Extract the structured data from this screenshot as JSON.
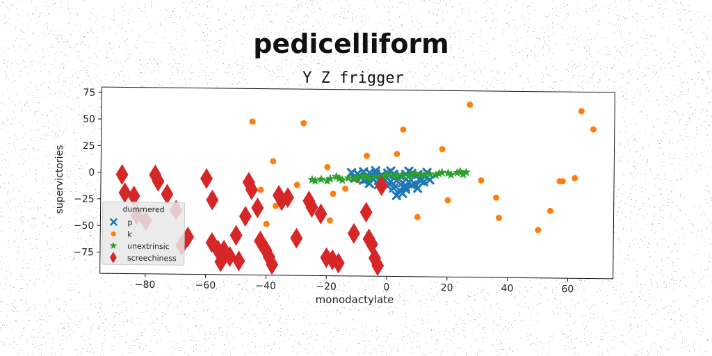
{
  "chart_data": {
    "type": "scatter",
    "title": "pedicelliform",
    "subtitle": "Y Z frigger",
    "xlabel": "monodactylate",
    "ylabel": "supervictories",
    "xlim": [
      -95,
      75
    ],
    "ylim": [
      -95,
      80
    ],
    "xticks": [
      -80,
      -60,
      -40,
      -20,
      0,
      20,
      40,
      60
    ],
    "yticks": [
      75,
      50,
      25,
      0,
      -25,
      -50,
      -75
    ],
    "xtick_labels": [
      "−80",
      "−60",
      "−40",
      "−20",
      "0",
      "20",
      "40",
      "60"
    ],
    "ytick_labels": [
      "75",
      "50",
      "25",
      "0",
      "−25",
      "−50",
      "−75"
    ],
    "grid": false,
    "legend": {
      "title": "dummered",
      "placement": "lower-left"
    },
    "series": [
      {
        "name": "p",
        "marker": "x",
        "color": "#1f77b4",
        "points": [
          [
            -12,
            2
          ],
          [
            -10,
            1
          ],
          [
            -8,
            3
          ],
          [
            -6,
            2
          ],
          [
            -4,
            1
          ],
          [
            -2,
            0
          ],
          [
            0,
            2
          ],
          [
            2,
            1
          ],
          [
            4,
            0
          ],
          [
            6,
            1
          ],
          [
            8,
            2
          ],
          [
            10,
            1
          ],
          [
            12,
            0
          ],
          [
            13,
            3
          ],
          [
            -11,
            -3
          ],
          [
            -9,
            -2
          ],
          [
            -7,
            -4
          ],
          [
            -5,
            -3
          ],
          [
            -3,
            -5
          ],
          [
            -1,
            -4
          ],
          [
            1,
            -6
          ],
          [
            3,
            -5
          ],
          [
            5,
            -7
          ],
          [
            7,
            -6
          ],
          [
            9,
            -8
          ],
          [
            11,
            -5
          ],
          [
            -6,
            -8
          ],
          [
            -3,
            -9
          ],
          [
            0,
            -10
          ],
          [
            2,
            -12
          ],
          [
            4,
            -14
          ],
          [
            6,
            -11
          ],
          [
            8,
            -9
          ],
          [
            10,
            -12
          ],
          [
            12,
            -6
          ],
          [
            -8,
            -5
          ],
          [
            -2,
            -7
          ],
          [
            5,
            -17
          ],
          [
            3,
            -19
          ],
          [
            6,
            -13
          ],
          [
            14,
            -4
          ],
          [
            -4,
            4
          ],
          [
            1,
            4
          ],
          [
            7,
            4
          ]
        ]
      },
      {
        "name": "k",
        "marker": "o",
        "color": "#ff7f0e",
        "points": [
          [
            -45,
            49
          ],
          [
            -28,
            48
          ],
          [
            -38,
            12
          ],
          [
            -20,
            7
          ],
          [
            -7,
            18
          ],
          [
            3,
            20
          ],
          [
            5,
            43
          ],
          [
            18,
            25
          ],
          [
            27,
            67
          ],
          [
            31,
            -4
          ],
          [
            36,
            -20
          ],
          [
            37,
            -39
          ],
          [
            50,
            -50
          ],
          [
            54,
            -32
          ],
          [
            57,
            -4
          ],
          [
            58,
            -4
          ],
          [
            62,
            -1
          ],
          [
            64,
            62
          ],
          [
            68,
            45
          ],
          [
            -42,
            -15
          ],
          [
            -37,
            -30
          ],
          [
            -30,
            -10
          ],
          [
            -18,
            -18
          ],
          [
            -19,
            -43
          ],
          [
            -10,
            -5
          ],
          [
            10,
            -39
          ],
          [
            20,
            -23
          ],
          [
            -14,
            -13
          ],
          [
            -3,
            -8
          ],
          [
            -40,
            -47
          ]
        ]
      },
      {
        "name": "unextrinsic",
        "marker": "star",
        "color": "#2ca02c",
        "points": [
          [
            -25,
            -5
          ],
          [
            -22,
            -4.5
          ],
          [
            -19,
            -4
          ],
          [
            -16,
            -3.5
          ],
          [
            -13,
            -3
          ],
          [
            -10,
            -2.5
          ],
          [
            -7,
            -2
          ],
          [
            -4,
            -1.5
          ],
          [
            -1,
            -1
          ],
          [
            2,
            -0.5
          ],
          [
            5,
            0
          ],
          [
            8,
            0.5
          ],
          [
            11,
            1
          ],
          [
            14,
            1.5
          ],
          [
            17,
            2
          ],
          [
            20,
            2.5
          ],
          [
            23,
            3
          ],
          [
            26,
            3.5
          ],
          [
            -24,
            -6
          ],
          [
            -20,
            -6
          ],
          [
            -15,
            -5
          ],
          [
            -11,
            -4
          ],
          [
            -6,
            -3
          ],
          [
            -2,
            -2
          ],
          [
            3,
            -1
          ],
          [
            7,
            -0.5
          ],
          [
            12,
            0
          ],
          [
            16,
            0.5
          ],
          [
            21,
            1
          ],
          [
            25,
            1.5
          ],
          [
            -17,
            -2
          ],
          [
            -8,
            -1
          ],
          [
            0,
            1
          ],
          [
            9,
            2
          ],
          [
            18,
            3
          ],
          [
            24,
            4
          ]
        ]
      },
      {
        "name": "screechiness",
        "marker": "diamond",
        "color": "#d62728",
        "points": [
          [
            -88,
            -2
          ],
          [
            -87,
            -19
          ],
          [
            -84,
            -22
          ],
          [
            -83,
            -40
          ],
          [
            -80,
            -45
          ],
          [
            -77,
            -2
          ],
          [
            -76,
            -8
          ],
          [
            -73,
            -20
          ],
          [
            -70,
            -35
          ],
          [
            -68,
            -68
          ],
          [
            -66,
            -60
          ],
          [
            -60,
            -5
          ],
          [
            -58,
            -25
          ],
          [
            -58,
            -65
          ],
          [
            -56,
            -72
          ],
          [
            -55,
            -83
          ],
          [
            -54,
            -72
          ],
          [
            -52,
            -78
          ],
          [
            -50,
            -58
          ],
          [
            -49,
            -82
          ],
          [
            -47,
            -40
          ],
          [
            -46,
            -8
          ],
          [
            -45,
            -15
          ],
          [
            -43,
            -32
          ],
          [
            -42,
            -63
          ],
          [
            -40,
            -72
          ],
          [
            -39,
            -78
          ],
          [
            -38,
            -85
          ],
          [
            -36,
            -20
          ],
          [
            -35,
            -25
          ],
          [
            -33,
            -22
          ],
          [
            -30,
            -60
          ],
          [
            -26,
            -25
          ],
          [
            -25,
            -31
          ],
          [
            -22,
            -37
          ],
          [
            -20,
            -78
          ],
          [
            -18,
            -80
          ],
          [
            -16,
            -83
          ],
          [
            -11,
            -55
          ],
          [
            -7,
            -35
          ],
          [
            -6,
            -60
          ],
          [
            -5,
            -65
          ],
          [
            -4,
            -78
          ],
          [
            -3,
            -85
          ],
          [
            -2,
            -10
          ]
        ]
      }
    ]
  }
}
